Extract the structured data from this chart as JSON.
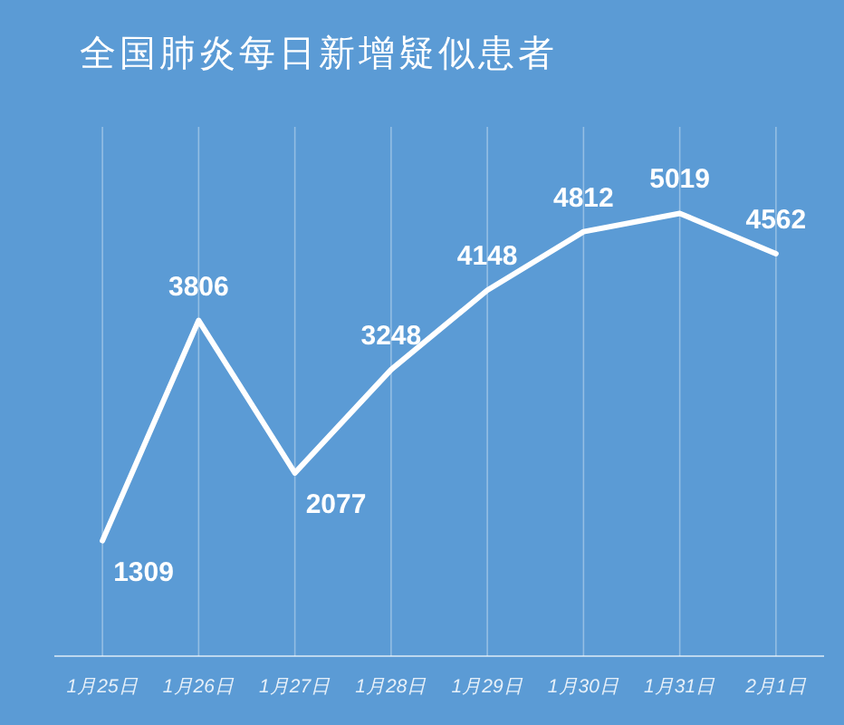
{
  "chart_data": {
    "type": "line",
    "title": "全国肺炎每日新增疑似患者",
    "categories": [
      "1月25日",
      "1月26日",
      "1月27日",
      "1月28日",
      "1月29日",
      "1月30日",
      "1月31日",
      "2月1日"
    ],
    "values": [
      1309,
      3806,
      2077,
      3248,
      4148,
      4812,
      5019,
      4562
    ],
    "color": "#ffffff",
    "ylim": [
      0,
      6000
    ],
    "grid": "x",
    "data_labels": true,
    "marker": "none",
    "line_style": "solid"
  }
}
